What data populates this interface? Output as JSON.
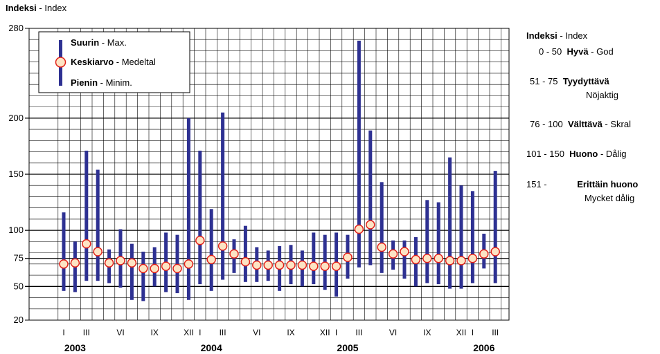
{
  "chart_data": {
    "type": "range",
    "ylabel_bold": "Indeksi",
    "ylabel_rest": "Index",
    "ylim": [
      20,
      280
    ],
    "y_ticks": [
      20,
      50,
      75,
      100,
      150,
      200,
      280
    ],
    "x": [
      "2003-01",
      "2003-02",
      "2003-03",
      "2003-04",
      "2003-05",
      "2003-06",
      "2003-07",
      "2003-08",
      "2003-09",
      "2003-10",
      "2003-11",
      "2003-12",
      "2004-01",
      "2004-02",
      "2004-03",
      "2004-04",
      "2004-05",
      "2004-06",
      "2004-07",
      "2004-08",
      "2004-09",
      "2004-10",
      "2004-11",
      "2004-12",
      "2005-01",
      "2005-02",
      "2005-03",
      "2005-04",
      "2005-05",
      "2005-06",
      "2005-07",
      "2005-08",
      "2005-09",
      "2005-10",
      "2005-11",
      "2005-12",
      "2006-01",
      "2006-02",
      "2006-03"
    ],
    "month_tick_labels": [
      {
        "index": 0,
        "label": "I"
      },
      {
        "index": 2,
        "label": "III"
      },
      {
        "index": 5,
        "label": "VI"
      },
      {
        "index": 8,
        "label": "IX"
      },
      {
        "index": 11,
        "label": "XII"
      },
      {
        "index": 12,
        "label": "I"
      },
      {
        "index": 14,
        "label": "III"
      },
      {
        "index": 17,
        "label": "VI"
      },
      {
        "index": 20,
        "label": "IX"
      },
      {
        "index": 23,
        "label": "XII"
      },
      {
        "index": 24,
        "label": "I"
      },
      {
        "index": 26,
        "label": "III"
      },
      {
        "index": 29,
        "label": "VI"
      },
      {
        "index": 32,
        "label": "IX"
      },
      {
        "index": 35,
        "label": "XII"
      },
      {
        "index": 36,
        "label": "I"
      },
      {
        "index": 38,
        "label": "III"
      }
    ],
    "year_labels": [
      {
        "index": 1,
        "label": "2003"
      },
      {
        "index": 13,
        "label": "2004"
      },
      {
        "index": 25,
        "label": "2005"
      },
      {
        "index": 37,
        "label": "2006"
      }
    ],
    "max": [
      116,
      90,
      171,
      154,
      83,
      101,
      88,
      81,
      85,
      98,
      96,
      200,
      171,
      119,
      205,
      92,
      104,
      85,
      82,
      86,
      87,
      82,
      98,
      96,
      98,
      96,
      269,
      189,
      143,
      91,
      91,
      94,
      127,
      125,
      165,
      140,
      135,
      97,
      153
    ],
    "mean": [
      70,
      71,
      88,
      81,
      71,
      73,
      71,
      66,
      66,
      68,
      66,
      70,
      91,
      74,
      86,
      79,
      72,
      69,
      69,
      69,
      69,
      69,
      68,
      68,
      68,
      76,
      101,
      105,
      85,
      79,
      81,
      74,
      75,
      75,
      73,
      73,
      75,
      79,
      81
    ],
    "min": [
      46,
      45,
      55,
      55,
      53,
      49,
      38,
      37,
      50,
      45,
      44,
      38,
      52,
      46,
      56,
      62,
      54,
      54,
      55,
      46,
      52,
      50,
      52,
      47,
      41,
      57,
      67,
      69,
      62,
      65,
      57,
      50,
      53,
      52,
      48,
      48,
      53,
      66,
      53
    ],
    "legend": [
      {
        "marker": "bar",
        "bold": "Suurin",
        "rest": "Max."
      },
      {
        "marker": "circle",
        "bold": "Keskiarvo",
        "rest": "Medeltal"
      },
      {
        "marker": "bar",
        "bold": "Pienin",
        "rest": "Minim."
      }
    ],
    "legend_position": "top-left",
    "grid": true,
    "colors": {
      "bar": "#2e3192",
      "marker_fill": "#fde4c4",
      "marker_stroke": "#e2231a",
      "grid": "#000000"
    }
  },
  "index_scale": {
    "title_bold": "Indeksi",
    "title_rest": "Index",
    "classes": [
      {
        "range": "0 -  50",
        "name_bold": "Hyvä",
        "name_rest": "God",
        "second_line": ""
      },
      {
        "range": "51 -  75",
        "name_bold": "Tyydyttävä",
        "name_rest": "",
        "second_line": "Nöjaktig"
      },
      {
        "range": "76 - 100",
        "name_bold": "Välttävä",
        "name_rest": "Skral",
        "second_line": ""
      },
      {
        "range": "101 - 150",
        "name_bold": "Huono",
        "name_rest": "Dålig",
        "second_line": ""
      },
      {
        "range": "151 -",
        "name_bold": "Erittäin huono",
        "name_rest": "",
        "second_line": "Mycket dålig"
      }
    ]
  }
}
